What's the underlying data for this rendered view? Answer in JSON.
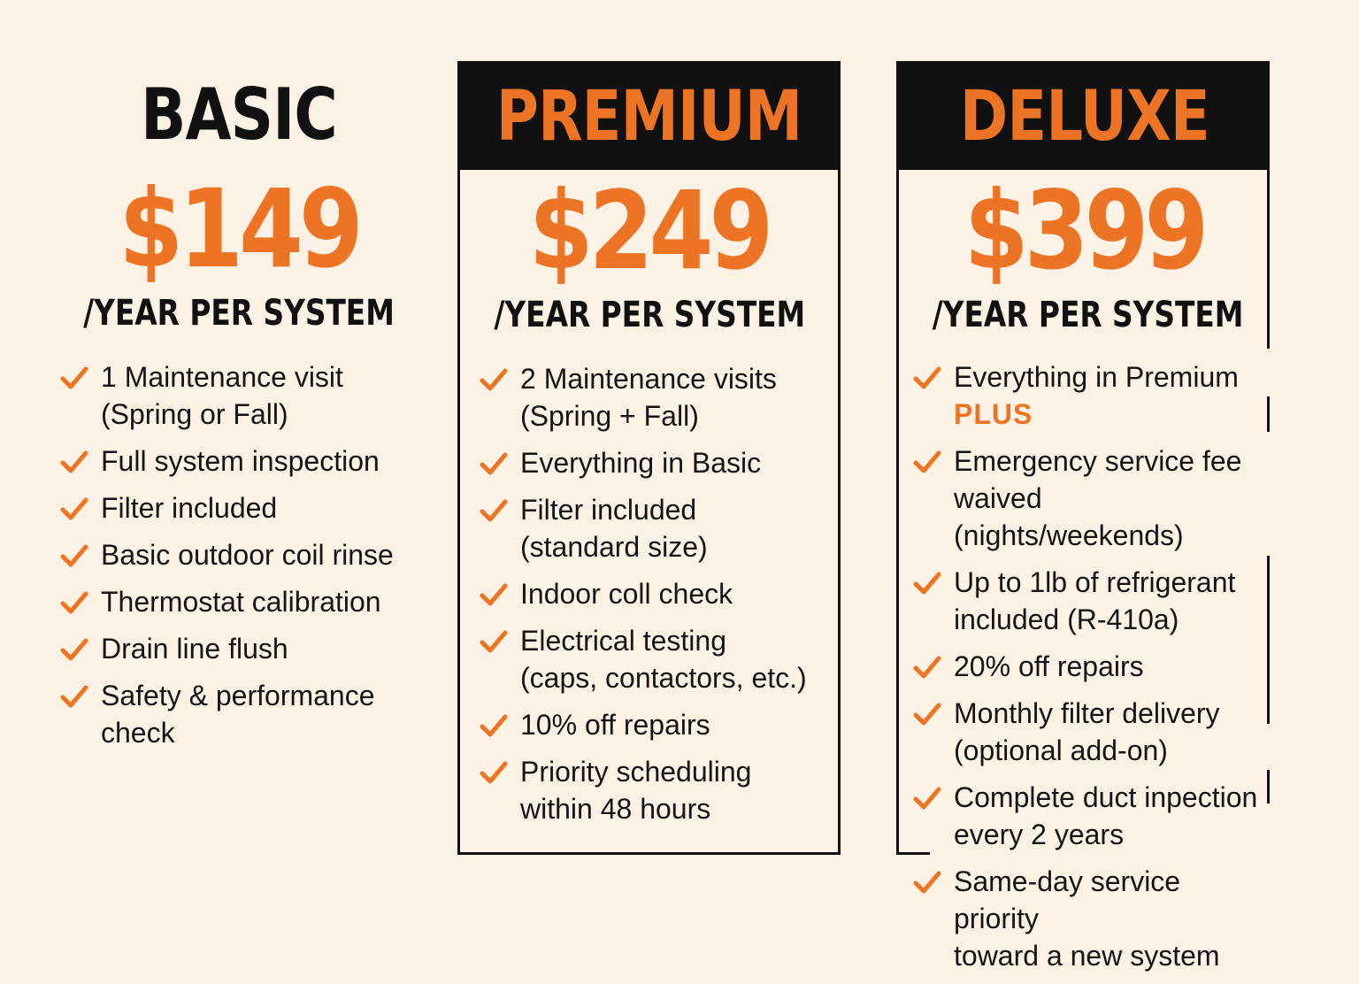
{
  "accent_color": "#ec7424",
  "text_color": "#111111",
  "background_color": "#fbf1e4",
  "check_icon": "checkmark-icon",
  "plans": [
    {
      "name": "BASIC",
      "price": "$149",
      "unit": "/YEAR PER SYSTEM",
      "features": [
        [
          "1 Maintenance visit",
          "(Spring or Fall)"
        ],
        [
          "Full system inspection"
        ],
        [
          "Filter included"
        ],
        [
          "Basic outdoor coil rinse"
        ],
        [
          "Thermostat calibration"
        ],
        [
          "Drain line flush"
        ],
        [
          "Safety & performance",
          "check"
        ]
      ]
    },
    {
      "name": "PREMIUM",
      "price": "$249",
      "unit": "/YEAR PER SYSTEM",
      "features": [
        [
          "2 Maintenance visits",
          "(Spring + Fall)"
        ],
        [
          "Everything in Basic"
        ],
        [
          "Filter included",
          "(standard size)"
        ],
        [
          "Indoor coll check"
        ],
        [
          "Electrical testing",
          "(caps, contactors, etc.)"
        ],
        [
          "10% off repairs"
        ],
        [
          "Priority scheduling",
          "within 48 hours"
        ]
      ]
    },
    {
      "name": "DELUXE",
      "price": "$399",
      "unit": "/YEAR PER SYSTEM",
      "plus_label": "PLUS",
      "features": [
        [
          "Everything in Premium"
        ],
        [
          "Emergency service fee",
          "waived (nights/weekends)"
        ],
        [
          "Up to 1lb of refrigerant",
          "included (R-410a)"
        ],
        [
          "20% off repairs"
        ],
        [
          "Monthly filter delivery",
          "(optional add-on)"
        ],
        [
          "Complete duct inpection",
          "every 2 years"
        ],
        [
          "Same-day service priority",
          "toward a new system"
        ]
      ]
    }
  ]
}
